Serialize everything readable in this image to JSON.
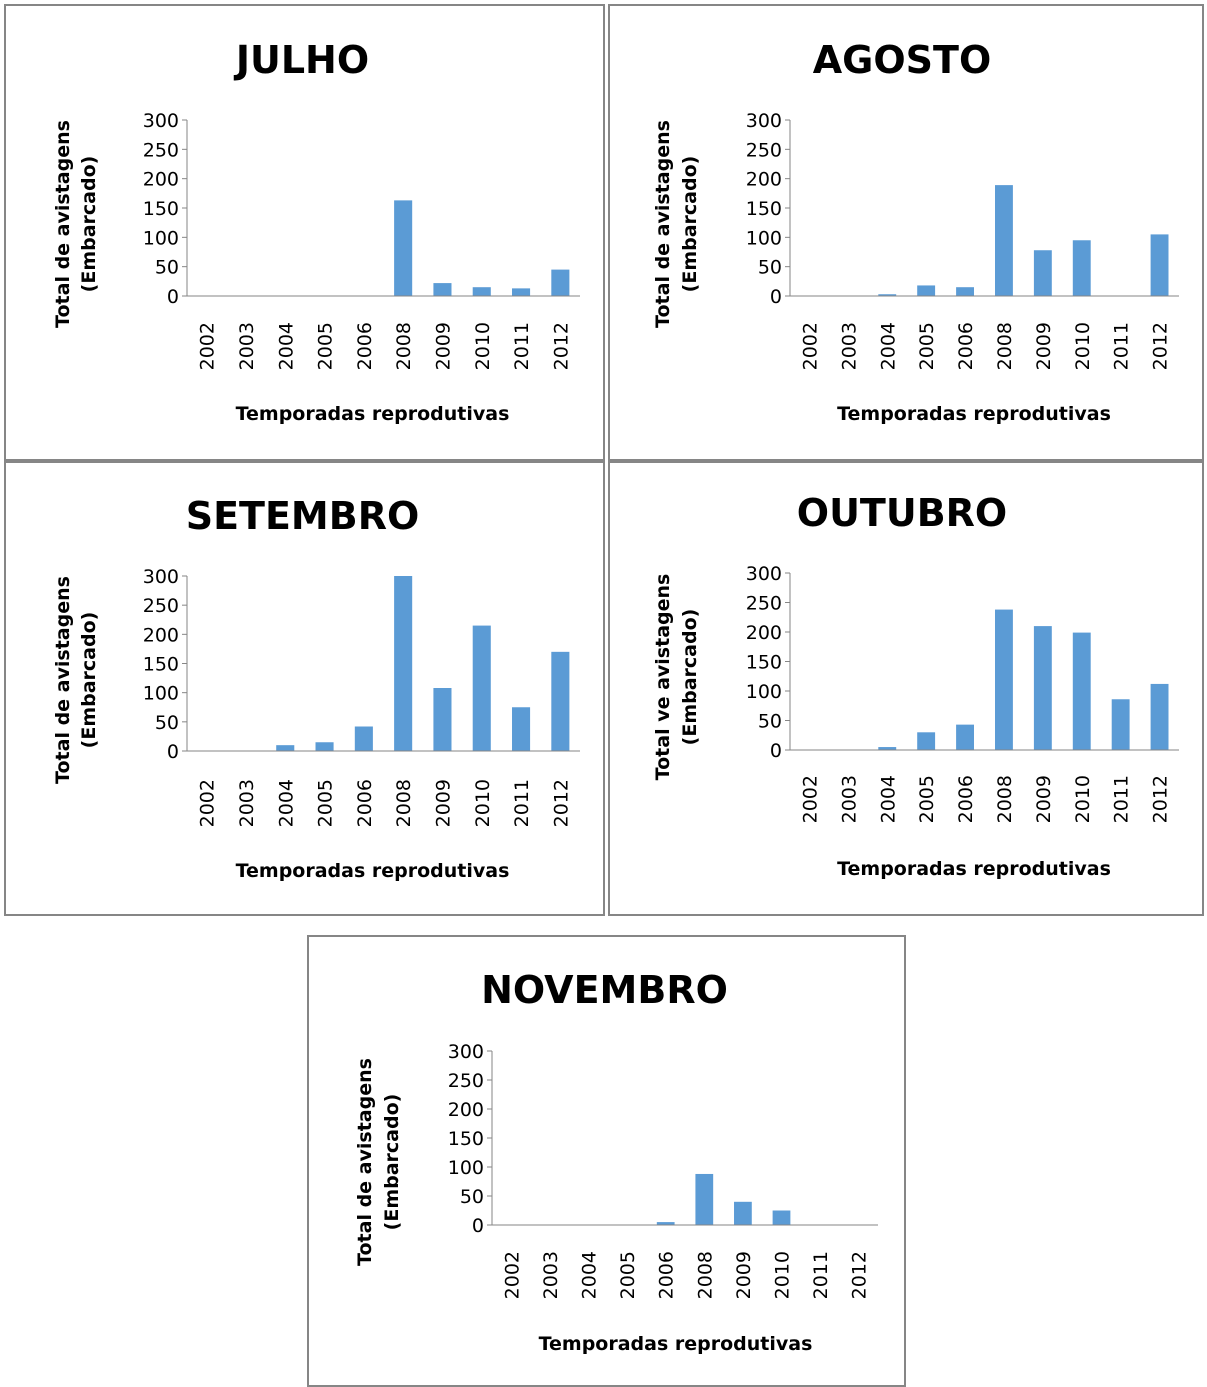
{
  "chart_data": [
    {
      "type": "bar",
      "title": "JULHO",
      "ylabel_lines": [
        "Total de avistagens",
        "(Embarcado)"
      ],
      "xlabel": "Temporadas reprodutivas",
      "categories": [
        "2002",
        "2003",
        "2004",
        "2005",
        "2006",
        "2008",
        "2009",
        "2010",
        "2011",
        "2012"
      ],
      "values": [
        0,
        0,
        0,
        0,
        0,
        163,
        22,
        15,
        13,
        45
      ],
      "ylim": [
        0,
        300
      ],
      "yticks": [
        0,
        50,
        100,
        150,
        200,
        250,
        300
      ],
      "color": "#5b9bd5",
      "grid": false,
      "legend": "none"
    },
    {
      "type": "bar",
      "title": "AGOSTO",
      "ylabel_lines": [
        "Total de avistagens",
        "(Embarcado)"
      ],
      "xlabel": "Temporadas reprodutivas",
      "categories": [
        "2002",
        "2003",
        "2004",
        "2005",
        "2006",
        "2008",
        "2009",
        "2010",
        "2011",
        "2012"
      ],
      "values": [
        0,
        0,
        3,
        18,
        15,
        189,
        78,
        95,
        0,
        105
      ],
      "ylim": [
        0,
        300
      ],
      "yticks": [
        0,
        50,
        100,
        150,
        200,
        250,
        300
      ],
      "color": "#5b9bd5",
      "grid": false,
      "legend": "none"
    },
    {
      "type": "bar",
      "title": "SETEMBRO",
      "ylabel_lines": [
        "Total de avistagens",
        "(Embarcado)"
      ],
      "xlabel": "Temporadas reprodutivas",
      "categories": [
        "2002",
        "2003",
        "2004",
        "2005",
        "2006",
        "2008",
        "2009",
        "2010",
        "2011",
        "2012"
      ],
      "values": [
        0,
        0,
        10,
        15,
        42,
        300,
        108,
        215,
        75,
        170
      ],
      "ylim": [
        0,
        300
      ],
      "yticks": [
        0,
        50,
        100,
        150,
        200,
        250,
        300
      ],
      "color": "#5b9bd5",
      "grid": false,
      "legend": "none"
    },
    {
      "type": "bar",
      "title": "OUTUBRO",
      "ylabel_lines": [
        "Total ve avistagens",
        "(Embarcado)"
      ],
      "xlabel": "Temporadas reprodutivas",
      "categories": [
        "2002",
        "2003",
        "2004",
        "2005",
        "2006",
        "2008",
        "2009",
        "2010",
        "2011",
        "2012"
      ],
      "values": [
        0,
        0,
        5,
        30,
        43,
        238,
        210,
        199,
        86,
        112
      ],
      "ylim": [
        0,
        300
      ],
      "yticks": [
        0,
        50,
        100,
        150,
        200,
        250,
        300
      ],
      "color": "#5b9bd5",
      "grid": false,
      "legend": "none"
    },
    {
      "type": "bar",
      "title": "NOVEMBRO",
      "ylabel_lines": [
        "Total de avistagens",
        "(Embarcado)"
      ],
      "xlabel": "Temporadas reprodutivas",
      "categories": [
        "2002",
        "2003",
        "2004",
        "2005",
        "2006",
        "2008",
        "2009",
        "2010",
        "2011",
        "2012"
      ],
      "values": [
        0,
        0,
        0,
        0,
        5,
        88,
        40,
        25,
        0,
        0
      ],
      "ylim": [
        0,
        300
      ],
      "yticks": [
        0,
        50,
        100,
        150,
        200,
        250,
        300
      ],
      "color": "#5b9bd5",
      "grid": false,
      "legend": "none"
    }
  ]
}
